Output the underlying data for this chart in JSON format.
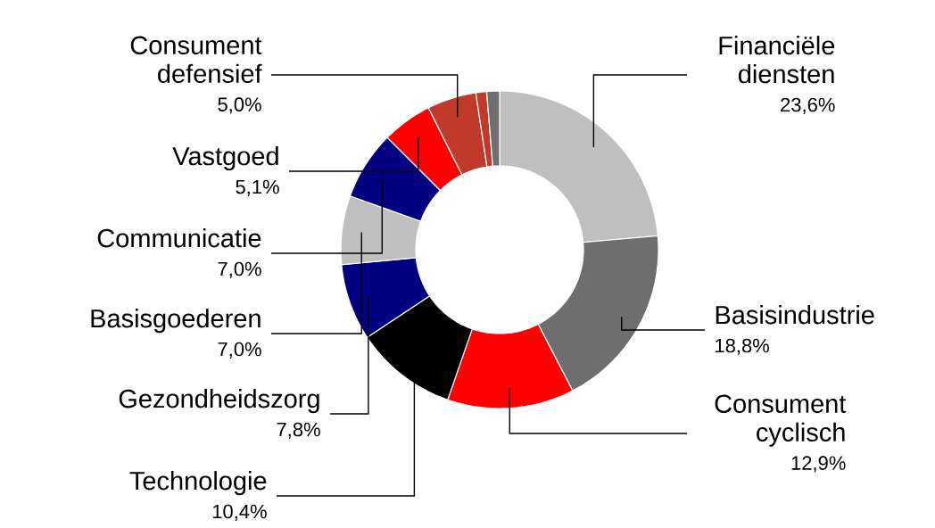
{
  "chart_data": {
    "type": "donut",
    "categories": [
      "Financiële diensten",
      "Basisindustrie",
      "Consument cyclisch",
      "Technologie",
      "Gezondheidszorg",
      "Basisgoederen",
      "Communicatie",
      "Vastgoed",
      "Consument defensief",
      null,
      null
    ],
    "values": [
      23.6,
      18.8,
      12.9,
      10.4,
      7.8,
      7.0,
      7.0,
      5.1,
      5.0,
      1.1,
      1.3
    ],
    "value_labels": [
      "23,6%",
      "18,8%",
      "12,9%",
      "10,4%",
      "7,8%",
      "7,0%",
      "7,0%",
      "5,1%",
      "5,0%",
      null,
      null
    ],
    "colors": [
      "#bfbfbf",
      "#6e6e6e",
      "#ff0000",
      "#000000",
      "#000080",
      "#bfbfbf",
      "#000080",
      "#ff0000",
      "#c0392b",
      "#c0392b",
      "#6e6e6e"
    ]
  }
}
